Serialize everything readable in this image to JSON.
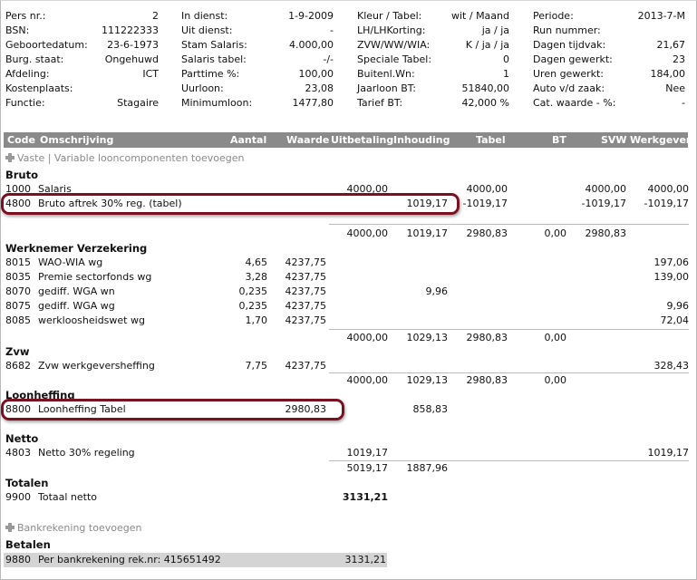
{
  "header": {
    "col1": [
      {
        "label": "Pers nr.:",
        "value": "2"
      },
      {
        "label": "BSN:",
        "value": "111222333"
      },
      {
        "label": "Geboortedatum:",
        "value": "23-6-1973"
      },
      {
        "label": "Burg. staat:",
        "value": "Ongehuwd"
      },
      {
        "label": "Afdeling:",
        "value": "ICT"
      },
      {
        "label": "Kostenplaats:",
        "value": ""
      },
      {
        "label": "Functie:",
        "value": "Stagaire"
      }
    ],
    "col2": [
      {
        "label": "In dienst:",
        "value": "1-9-2009"
      },
      {
        "label": "Uit dienst:",
        "value": "-"
      },
      {
        "label": "Stam Salaris:",
        "value": "4.000,00"
      },
      {
        "label": "Salaris tabel:",
        "value": "-/-"
      },
      {
        "label": "Parttime %:",
        "value": "100,00"
      },
      {
        "label": "Uurloon:",
        "value": "23,08"
      },
      {
        "label": "Minimumloon:",
        "value": "1477,80"
      }
    ],
    "col3": [
      {
        "label": "Kleur / Tabel:",
        "value": "wit / Maand"
      },
      {
        "label": "LH/LHKorting:",
        "value": "ja / ja"
      },
      {
        "label": "ZVW/WW/WIA:",
        "value": "K / ja / ja"
      },
      {
        "label": "Speciale Tabel:",
        "value": "0"
      },
      {
        "label": "Buitenl.Wn:",
        "value": "1"
      },
      {
        "label": "Jaarloon BT:",
        "value": "51840,00"
      },
      {
        "label": "Tarief BT:",
        "value": "42,000 %"
      }
    ],
    "col4": [
      {
        "label": "Periode:",
        "value": "2013-7-M"
      },
      {
        "label": "Run nummer:",
        "value": ""
      },
      {
        "label": "Dagen tijdvak:",
        "value": "21,67"
      },
      {
        "label": "Dagen gewerkt:",
        "value": "23"
      },
      {
        "label": "Uren gewerkt:",
        "value": "184,00"
      },
      {
        "label": "Auto v/d zaak:",
        "value": "Nee"
      },
      {
        "label": "Cat. waarde - %:",
        "value": "-"
      }
    ]
  },
  "table_header": {
    "code": "Code",
    "omschrijving": "Omschrijving",
    "aantal": "Aantal",
    "waarde": "Waarde",
    "uitbetaling": "Uitbetaling",
    "inhouding": "Inhouding",
    "tabel": "Tabel",
    "bt": "BT",
    "svw": "SVW",
    "werkgever": "Werkgever"
  },
  "add_components_label": "Vaste | Variable looncomponenten toevoegen",
  "sections": {
    "bruto": "Bruto",
    "werknemer": "Werknemer Verzekering",
    "zvw": "Zvw",
    "loonheffing": "Loonheffing",
    "netto": "Netto",
    "totalen": "Totalen",
    "betalen": "Betalen"
  },
  "rows": {
    "r1000": {
      "code": "1000",
      "desc": "Salaris",
      "uitbetaling": "4000,00",
      "tabel": "4000,00",
      "svw": "4000,00",
      "werkgever": "4000,00"
    },
    "r4800": {
      "code": "4800",
      "desc": "Bruto aftrek 30% reg. (tabel)",
      "inhouding": "1019,17",
      "tabel": "-1019,17",
      "svw": "-1019,17",
      "werkgever": "-1019,17"
    },
    "sub_bruto": {
      "uitbetaling": "4000,00",
      "inhouding": "1019,17",
      "tabel": "2980,83",
      "bt": "0,00",
      "svw": "2980,83"
    },
    "r8015": {
      "code": "8015",
      "desc": "WAO-WIA wg",
      "aantal": "4,65",
      "waarde": "4237,75",
      "werkgever": "197,06"
    },
    "r8035": {
      "code": "8035",
      "desc": "Premie sectorfonds wg",
      "aantal": "3,28",
      "waarde": "4237,75",
      "werkgever": "139,00"
    },
    "r8070": {
      "code": "8070",
      "desc": "gediff. WGA wn",
      "aantal": "0,235",
      "waarde": "4237,75",
      "inhouding": "9,96"
    },
    "r8075": {
      "code": "8075",
      "desc": "gediff. WGA wg",
      "aantal": "0,235",
      "waarde": "4237,75",
      "werkgever": "9,96"
    },
    "r8085": {
      "code": "8085",
      "desc": "werkloosheidswet wg",
      "aantal": "1,70",
      "waarde": "4237,75",
      "werkgever": "72,04"
    },
    "sub_wv": {
      "uitbetaling": "4000,00",
      "inhouding": "1029,13",
      "tabel": "2980,83",
      "bt": "0,00"
    },
    "r8682": {
      "code": "8682",
      "desc": "Zvw werkgeversheffing",
      "aantal": "7,75",
      "waarde": "4237,75",
      "werkgever": "328,43"
    },
    "sub_zvw": {
      "uitbetaling": "4000,00",
      "inhouding": "1029,13",
      "tabel": "2980,83",
      "bt": "0,00"
    },
    "r8800": {
      "code": "8800",
      "desc": "Loonheffing Tabel",
      "waarde": "2980,83",
      "inhouding": "858,83"
    },
    "r4803": {
      "code": "4803",
      "desc": "Netto 30% regeling",
      "uitbetaling": "1019,17",
      "werkgever": "1019,17"
    },
    "sub_netto": {
      "uitbetaling": "5019,17",
      "inhouding": "1887,96"
    },
    "r9900": {
      "code": "9900",
      "desc": "Totaal netto",
      "uitbetaling": "3131,21"
    },
    "r9880": {
      "code": "9880",
      "desc": "Per bankrekening rek.nr: 415651492",
      "uitbetaling": "3131,21"
    }
  },
  "add_bank_label": "Bankrekening toevoegen",
  "colors": {
    "header_bg": "#8a8a8a",
    "highlight_border": "#7a1020",
    "bank_row_bg": "#d4d4d4"
  },
  "icons": {
    "add": "plus-icon"
  }
}
